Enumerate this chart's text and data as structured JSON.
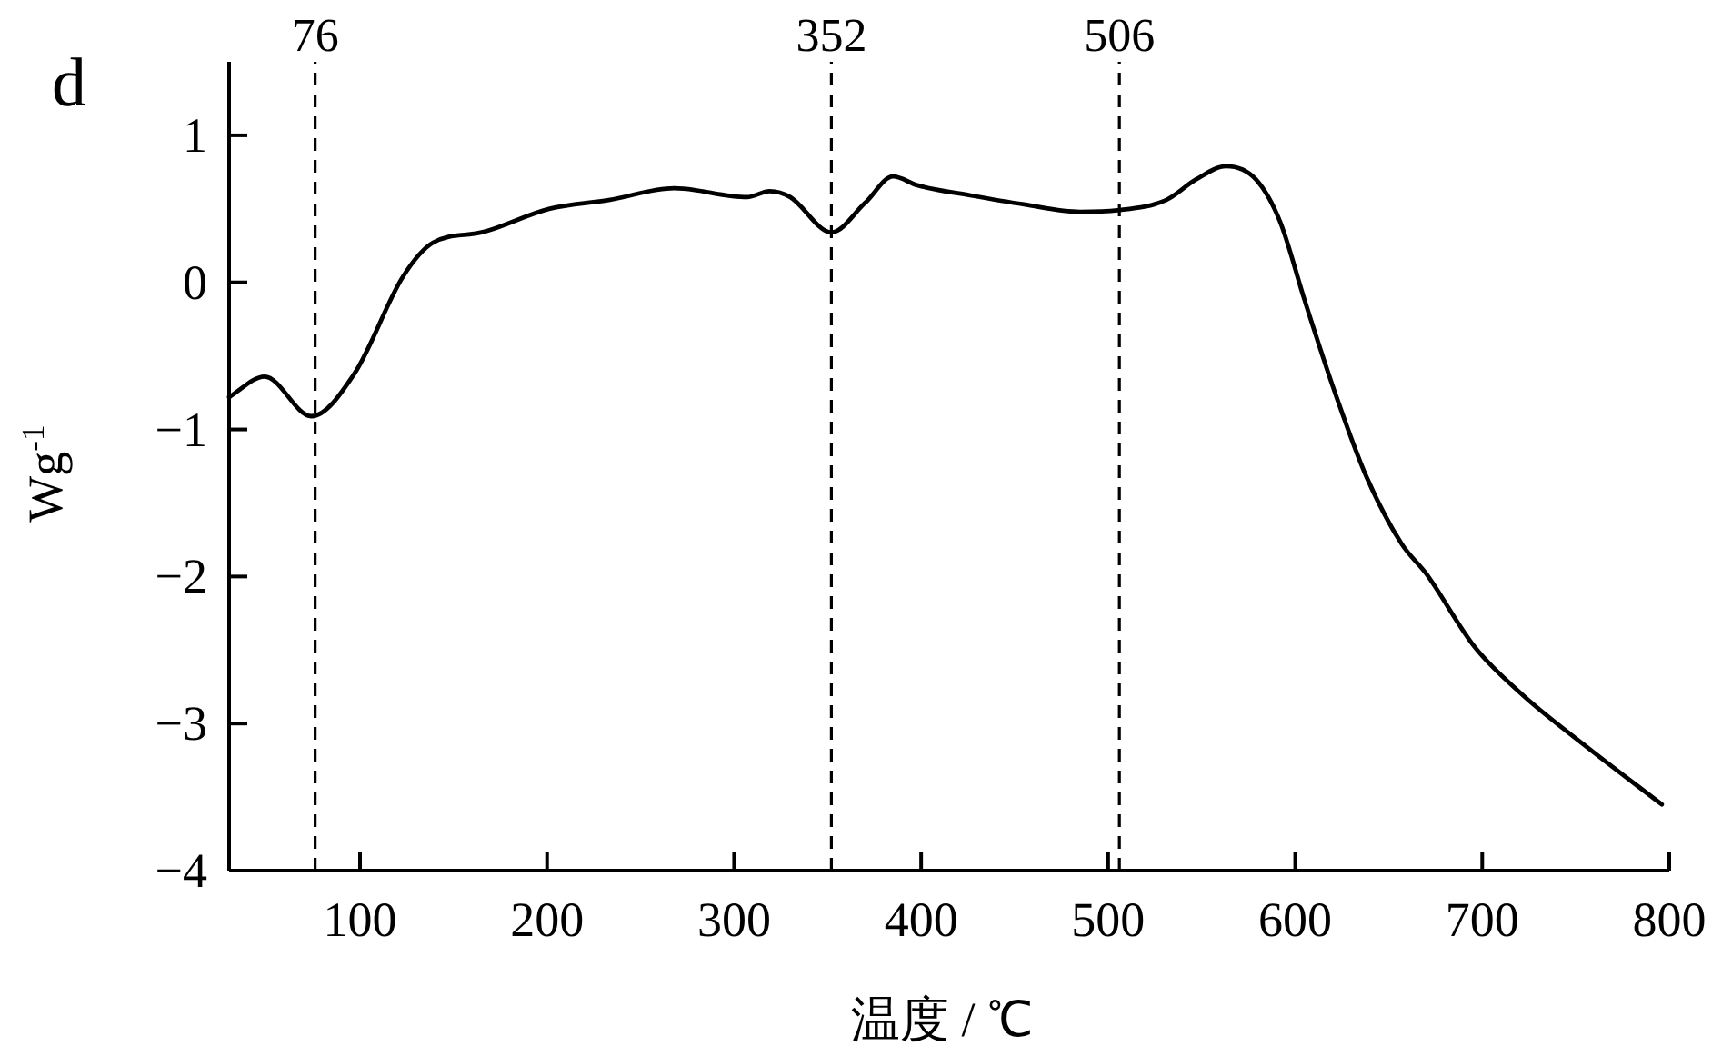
{
  "chart_data": {
    "type": "line",
    "title": "d",
    "xlabel": "温度 / ℃",
    "ylabel": "Wg$^{-1}$",
    "xlim": [
      30,
      800
    ],
    "ylim": [
      -4,
      1.5
    ],
    "xticks": [
      100,
      200,
      300,
      400,
      500,
      600,
      700,
      800
    ],
    "yticks": [
      {
        "value": -4,
        "label": "−4"
      },
      {
        "value": -3,
        "label": "−3"
      },
      {
        "value": -2,
        "label": "−2"
      },
      {
        "value": -1,
        "label": "−1"
      },
      0,
      1
    ],
    "grid": false,
    "marker": "none",
    "series": [
      {
        "color": "#000000",
        "line_style": "solid",
        "x": [
          30,
          49,
          74,
          97,
          123,
          139,
          165,
          201,
          233,
          268,
          307,
          319,
          330,
          352,
          370,
          385,
          398,
          427,
          455,
          485,
          505,
          531,
          547,
          563,
          579,
          592,
          605,
          621,
          638,
          657,
          670,
          696,
          722,
          754,
          796
        ],
        "values": [
          -0.78,
          -0.64,
          -0.91,
          -0.62,
          0.04,
          0.27,
          0.34,
          0.5,
          0.56,
          0.64,
          0.58,
          0.62,
          0.58,
          0.34,
          0.54,
          0.72,
          0.66,
          0.59,
          0.53,
          0.48,
          0.49,
          0.56,
          0.7,
          0.79,
          0.7,
          0.41,
          -0.12,
          -0.74,
          -1.32,
          -1.78,
          -1.98,
          -2.48,
          -2.81,
          -3.14,
          -3.55
        ]
      }
    ],
    "ref_lines": [
      {
        "axis": "x",
        "value": 76,
        "label": "76",
        "line_style": "dashed",
        "color": "#000000"
      },
      {
        "axis": "x",
        "value": 352,
        "label": "352",
        "line_style": "dashed",
        "color": "#000000"
      },
      {
        "axis": "x",
        "value": 506,
        "label": "506",
        "line_style": "dashed",
        "color": "#000000"
      }
    ]
  }
}
